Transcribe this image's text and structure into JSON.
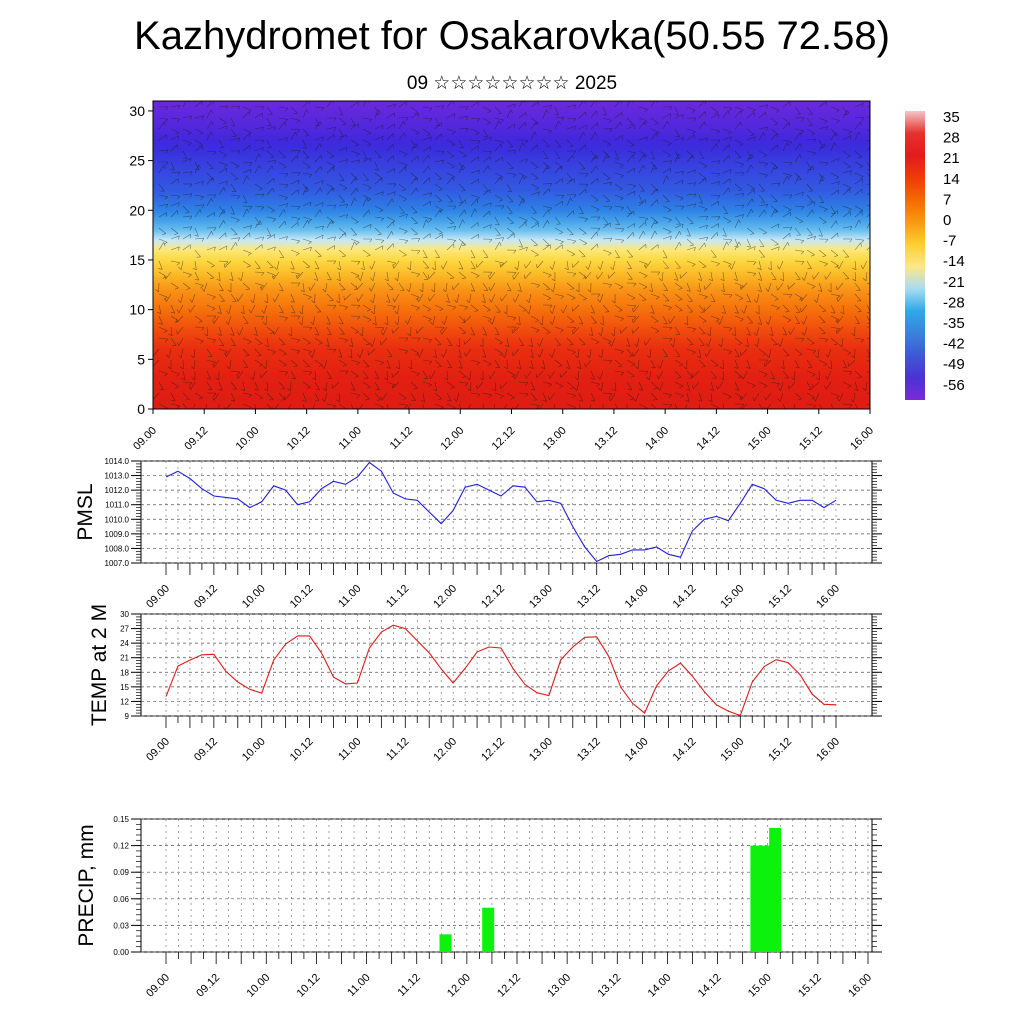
{
  "header": {
    "title": "Kazhydromet for Osakarovka(50.55 72.58)",
    "subtitle": "09 ☆☆☆☆☆☆☆☆ 2025"
  },
  "chart_data": [
    {
      "type": "heatmap",
      "x_ticks": [
        "09.00",
        "09.12",
        "10.00",
        "10.12",
        "11.00",
        "11.12",
        "12.00",
        "12.12",
        "13.00",
        "13.12",
        "14.00",
        "14.12",
        "15.00",
        "15.12",
        "16.00"
      ],
      "y_ticks": [
        0,
        5,
        10,
        15,
        20,
        25,
        30
      ],
      "ylim": [
        0,
        31
      ],
      "colorbar": {
        "labels": [
          "35",
          "28",
          "21",
          "14",
          "7",
          "0",
          "-7",
          "-14",
          "-21",
          "-28",
          "-35",
          "-42",
          "-49",
          "-56"
        ],
        "colors": [
          "#f2c6c6",
          "#e63030",
          "#e31a1c",
          "#f03a0a",
          "#f56a00",
          "#f89a10",
          "#fbd030",
          "#fde78a",
          "#a7dcf3",
          "#2fa8e6",
          "#3b82db",
          "#3f58d4",
          "#4a32d6",
          "#7a2bd8"
        ]
      },
      "temperature_profile": [
        {
          "level": 0,
          "value": 26
        },
        {
          "level": 3,
          "value": 25
        },
        {
          "level": 6,
          "value": 21
        },
        {
          "level": 9,
          "value": 14
        },
        {
          "level": 12,
          "value": 7
        },
        {
          "level": 14,
          "value": 0
        },
        {
          "level": 16,
          "value": -7
        },
        {
          "level": 18,
          "value": -21
        },
        {
          "level": 20,
          "value": -32
        },
        {
          "level": 22,
          "value": -40
        },
        {
          "level": 25,
          "value": -46
        },
        {
          "level": 28,
          "value": -53
        },
        {
          "level": 31,
          "value": -58
        }
      ]
    },
    {
      "type": "line",
      "ylabel": "PMSL",
      "yticks": [
        "1007.0",
        "1008.0",
        "1009.0",
        "1010.0",
        "1011.0",
        "1012.0",
        "1013.0",
        "1014.0"
      ],
      "ylim": [
        1007,
        1014
      ],
      "x_ticks": [
        "09.00",
        "09.12",
        "10.00",
        "10.12",
        "11.00",
        "11.12",
        "12.00",
        "12.12",
        "13.00",
        "13.12",
        "14.00",
        "14.12",
        "15.00",
        "15.12",
        "16.00"
      ],
      "color": "#1f1fd6",
      "series": [
        {
          "values": [
            1012.9,
            1013.3,
            1012.8,
            1012.1,
            1011.6,
            1011.5,
            1011.4,
            1010.8,
            1011.2,
            1012.3,
            1012.0,
            1011.0,
            1011.2,
            1012.1,
            1012.6,
            1012.4,
            1012.9,
            1013.9,
            1013.3,
            1011.8,
            1011.4,
            1011.3,
            1010.5,
            1009.7,
            1010.6,
            1012.2,
            1012.4,
            1012.0,
            1011.6,
            1012.3,
            1012.2,
            1011.2,
            1011.3,
            1011.1,
            1009.5,
            1008.1,
            1007.1,
            1007.5,
            1007.6,
            1007.9,
            1007.9,
            1008.1,
            1007.6,
            1007.4,
            1009.2,
            1010.0,
            1010.2,
            1009.9,
            1011.1,
            1012.4,
            1012.1,
            1011.3,
            1011.1,
            1011.3,
            1011.3,
            1010.8,
            1011.3
          ]
        }
      ]
    },
    {
      "type": "line",
      "ylabel": "TEMP at 2 M",
      "yticks": [
        "9",
        "12",
        "15",
        "18",
        "21",
        "24",
        "27",
        "30"
      ],
      "ylim": [
        9,
        30
      ],
      "x_ticks": [
        "09.00",
        "09.12",
        "10.00",
        "10.12",
        "11.00",
        "11.12",
        "12.00",
        "12.12",
        "13.00",
        "13.12",
        "14.00",
        "14.12",
        "15.00",
        "15.12",
        "16.00"
      ],
      "color": "#dd1a1a",
      "series": [
        {
          "values": [
            13.0,
            19.3,
            20.5,
            21.6,
            21.7,
            18.2,
            16.0,
            14.5,
            13.7,
            20.5,
            23.8,
            25.5,
            25.5,
            22.0,
            17.0,
            15.6,
            15.8,
            23.0,
            26.3,
            27.7,
            27.0,
            24.5,
            22.0,
            18.7,
            15.8,
            18.8,
            22.2,
            23.2,
            23.0,
            18.8,
            15.5,
            13.8,
            13.2,
            20.6,
            23.2,
            25.2,
            25.3,
            21.3,
            15.0,
            11.6,
            9.6,
            15.2,
            18.3,
            19.9,
            17.2,
            14.0,
            11.3,
            10.0,
            9.1,
            16.0,
            19.2,
            20.6,
            20.0,
            17.5,
            13.5,
            11.4,
            11.3
          ]
        }
      ]
    },
    {
      "type": "bar",
      "ylabel": "PRECIP, mm",
      "yticks": [
        "0.00",
        "0.03",
        "0.06",
        "0.09",
        "0.12",
        "0.15"
      ],
      "ylim": [
        0,
        0.15
      ],
      "x_ticks": [
        "09.00",
        "09.12",
        "10.00",
        "10.12",
        "11.00",
        "11.12",
        "12.00",
        "12.12",
        "13.00",
        "13.12",
        "14.00",
        "14.12",
        "15.00",
        "15.12",
        "16.00"
      ],
      "color": "#0cf20c",
      "bars": [
        {
          "time_index": 22.3,
          "value": 0.02
        },
        {
          "time_index": 25.7,
          "value": 0.05
        },
        {
          "time_index": 47.1,
          "value": 0.12
        },
        {
          "time_index": 47.8,
          "value": 0.12
        },
        {
          "time_index": 48.6,
          "value": 0.14
        }
      ]
    }
  ]
}
